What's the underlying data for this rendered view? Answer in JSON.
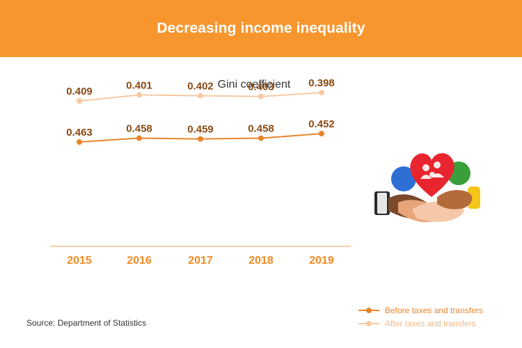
{
  "header": {
    "title": "Decreasing income inequality"
  },
  "chart_data": {
    "type": "line",
    "title": "Gini coefficient",
    "xlabel": "",
    "ylabel": "",
    "categories": [
      "2015",
      "2016",
      "2017",
      "2018",
      "2019"
    ],
    "series": [
      {
        "name": "Before taxes and transfers",
        "color": "#E8852A",
        "values": [
          0.463,
          0.458,
          0.459,
          0.458,
          0.452
        ]
      },
      {
        "name": "After taxes and transfers",
        "color": "#F7C9A3",
        "values": [
          0.409,
          0.401,
          0.402,
          0.403,
          0.398
        ]
      }
    ],
    "ylim": [
      0.38,
      0.48
    ],
    "data_labels": true,
    "grid": false,
    "legend_position": "bottom-right"
  },
  "footer": {
    "source": "Source: Department of Statistics"
  },
  "colors": {
    "banner": "#F7962E",
    "axis": "#F2A15A",
    "tick_label": "#F08A24",
    "value_label": "#8A4A14"
  },
  "illustration": {
    "icon": "hands-heart-family-icon"
  }
}
